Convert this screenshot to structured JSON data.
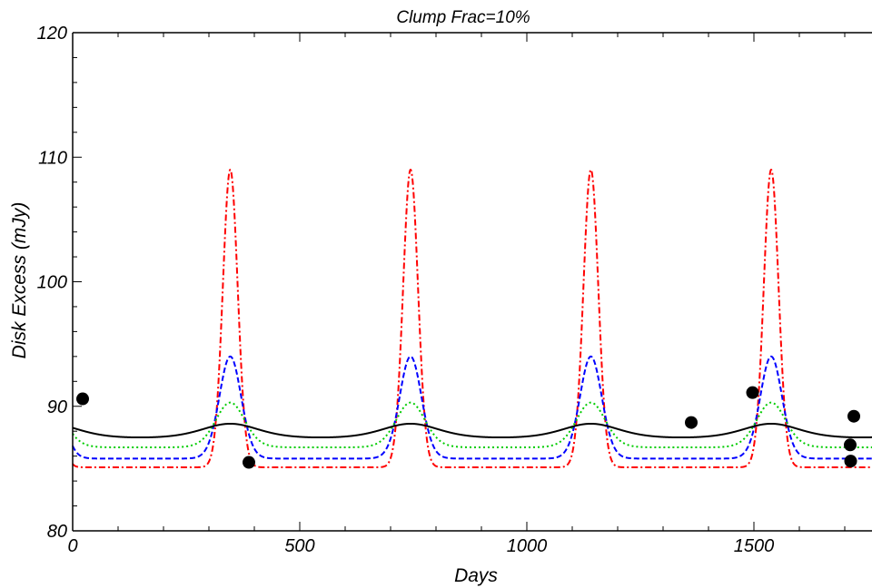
{
  "chart_data": {
    "type": "line",
    "title": "Clump Frac=10%",
    "xlabel": "Days",
    "ylabel": "Disk Excess (mJy)",
    "xlim": [
      0,
      1760
    ],
    "ylim": [
      80,
      120
    ],
    "x_ticks": [
      "0",
      "500",
      "1000",
      "1500"
    ],
    "x_tick_values": [
      0,
      500,
      1000,
      1500
    ],
    "y_ticks": [
      "80",
      "90",
      "100",
      "110",
      "120"
    ],
    "y_tick_values": [
      80,
      90,
      100,
      110,
      120
    ],
    "grid": false,
    "legend": "none",
    "period": 397,
    "peak_day": 347,
    "series": [
      {
        "color": "#ff0000",
        "dash": "dashdot",
        "baseline": 85.1,
        "peak": 109
      },
      {
        "color": "#0000ff",
        "dash": "dashed",
        "baseline": 85.8,
        "peak": 94
      },
      {
        "color": "#00cc00",
        "dash": "dotted",
        "baseline": 86.7,
        "peak": 90.3
      },
      {
        "color": "#000000",
        "dash": "solid",
        "baseline": 87.5,
        "peak": 88.6
      }
    ],
    "observations": {
      "x": [
        22,
        388,
        1362,
        1497,
        1712,
        1720,
        1713
      ],
      "y": [
        90.6,
        85.5,
        88.7,
        91.1,
        86.9,
        89.2,
        85.6
      ]
    }
  }
}
